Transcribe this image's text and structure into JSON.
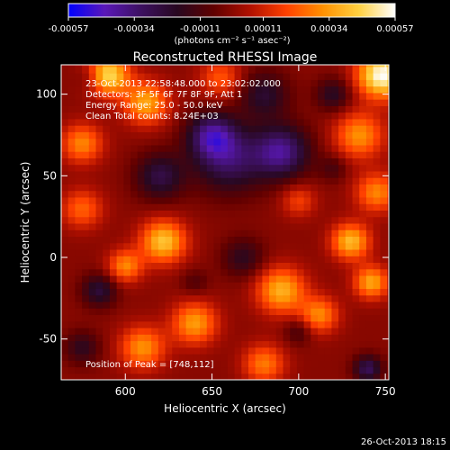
{
  "chart_data": {
    "type": "heatmap",
    "title": "Reconstructed RHESSI Image",
    "xlabel": "Heliocentric X (arcsec)",
    "ylabel": "Heliocentric Y (arcsec)",
    "xlim": [
      563,
      752
    ],
    "ylim": [
      -75,
      118
    ],
    "xticks": [
      600,
      650,
      700,
      750
    ],
    "yticks": [
      -50,
      0,
      50,
      100
    ],
    "colorbar": {
      "range": [
        -0.00057,
        0.00057
      ],
      "tick_values": [
        -0.00057,
        -0.00034,
        -0.00011,
        0.00011,
        0.00034,
        0.00057
      ],
      "tick_labels": [
        "-0.00057",
        "-0.00034",
        "-0.00011",
        "0.00011",
        "0.00034",
        "0.00057"
      ],
      "units_label": "(photons cm⁻² s⁻¹ asec⁻²)",
      "colors": [
        "#0000ff",
        "#5a18b8",
        "#3c1060",
        "#280820",
        "#600000",
        "#b01000",
        "#ff4000",
        "#ff9000",
        "#ffd040",
        "#ffffff"
      ]
    },
    "annotations": {
      "time_range": "23-Oct-2013 22:58:48.000 to 23:02:02.000",
      "detectors": "Detectors: 3F 5F 6F 7F 8F 9F, Att 1",
      "energy": "Energy Range: 25.0 - 50.0 keV",
      "clean": "Clean    Total counts: 8.24E+03",
      "peak": "Position of Peak = [748,112]"
    },
    "peak": {
      "x": 748,
      "y": 112
    },
    "blobs": [
      {
        "x": 748,
        "y": 112,
        "r": 14,
        "v": 0.00057
      },
      {
        "x": 590,
        "y": 112,
        "r": 12,
        "v": 0.00048
      },
      {
        "x": 612,
        "y": 95,
        "r": 13,
        "v": 0.00036
      },
      {
        "x": 575,
        "y": 70,
        "r": 12,
        "v": 0.0003
      },
      {
        "x": 735,
        "y": 75,
        "r": 14,
        "v": 0.00032
      },
      {
        "x": 745,
        "y": 40,
        "r": 12,
        "v": 0.0003
      },
      {
        "x": 575,
        "y": 30,
        "r": 12,
        "v": 0.00024
      },
      {
        "x": 622,
        "y": 10,
        "r": 13,
        "v": 0.00042
      },
      {
        "x": 600,
        "y": -5,
        "r": 10,
        "v": 0.0003
      },
      {
        "x": 730,
        "y": 10,
        "r": 11,
        "v": 0.0004
      },
      {
        "x": 742,
        "y": -15,
        "r": 10,
        "v": 0.00036
      },
      {
        "x": 690,
        "y": -20,
        "r": 14,
        "v": 0.00038
      },
      {
        "x": 712,
        "y": -35,
        "r": 11,
        "v": 0.0003
      },
      {
        "x": 640,
        "y": -40,
        "r": 13,
        "v": 0.00034
      },
      {
        "x": 610,
        "y": -55,
        "r": 13,
        "v": 0.00032
      },
      {
        "x": 680,
        "y": -65,
        "r": 12,
        "v": 0.00028
      },
      {
        "x": 655,
        "y": 110,
        "r": 12,
        "v": 0.00022
      },
      {
        "x": 700,
        "y": 35,
        "r": 10,
        "v": 0.00018
      },
      {
        "x": 660,
        "y": 60,
        "r": 20,
        "v": -0.0003
      },
      {
        "x": 690,
        "y": 65,
        "r": 16,
        "v": -0.00038
      },
      {
        "x": 650,
        "y": 75,
        "r": 14,
        "v": -0.00034
      },
      {
        "x": 620,
        "y": 50,
        "r": 14,
        "v": -0.00026
      },
      {
        "x": 680,
        "y": 100,
        "r": 14,
        "v": -0.00022
      },
      {
        "x": 720,
        "y": 100,
        "r": 10,
        "v": -0.0002
      },
      {
        "x": 580,
        "y": 110,
        "r": 8,
        "v": -0.00012
      },
      {
        "x": 668,
        "y": 0,
        "r": 12,
        "v": -0.00018
      },
      {
        "x": 585,
        "y": -20,
        "r": 10,
        "v": -0.00024
      },
      {
        "x": 575,
        "y": -55,
        "r": 10,
        "v": -0.00018
      },
      {
        "x": 700,
        "y": -45,
        "r": 8,
        "v": -0.00014
      },
      {
        "x": 740,
        "y": -68,
        "r": 8,
        "v": -0.0003
      },
      {
        "x": 640,
        "y": -15,
        "r": 8,
        "v": -0.0001
      },
      {
        "x": 720,
        "y": 55,
        "r": 8,
        "v": -0.00012
      }
    ]
  },
  "footer": {
    "timestamp": "26-Oct-2013 18:15"
  }
}
